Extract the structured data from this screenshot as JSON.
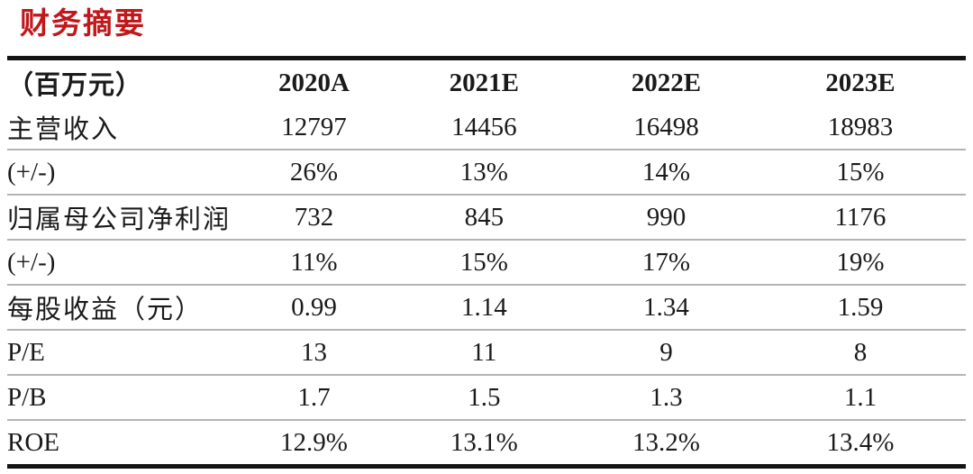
{
  "page": {
    "title": "财务摘要"
  },
  "table": {
    "unit_header": "（百万元）",
    "columns": [
      "2020A",
      "2021E",
      "2022E",
      "2023E"
    ],
    "rows": [
      {
        "label": "主营收入",
        "values": [
          "12797",
          "14456",
          "16498",
          "18983"
        ]
      },
      {
        "label": "(+/-)",
        "values": [
          "26%",
          "13%",
          "14%",
          "15%"
        ]
      },
      {
        "label": "归属母公司净利润",
        "values": [
          "732",
          "845",
          "990",
          "1176"
        ]
      },
      {
        "label": "(+/-)",
        "values": [
          "11%",
          "15%",
          "17%",
          "19%"
        ]
      },
      {
        "label": "每股收益（元）",
        "values": [
          "0.99",
          "1.14",
          "1.34",
          "1.59"
        ]
      },
      {
        "label": "P/E",
        "values": [
          "13",
          "11",
          "9",
          "8"
        ]
      },
      {
        "label": "P/B",
        "values": [
          "1.7",
          "1.5",
          "1.3",
          "1.1"
        ]
      },
      {
        "label": "ROE",
        "values": [
          "12.9%",
          "13.1%",
          "13.2%",
          "13.4%"
        ]
      }
    ]
  },
  "colors": {
    "title_red": "#c0181b",
    "thick_border": "#141414",
    "row_divider": "#b4b4b4",
    "text": "#1a1a1a"
  }
}
